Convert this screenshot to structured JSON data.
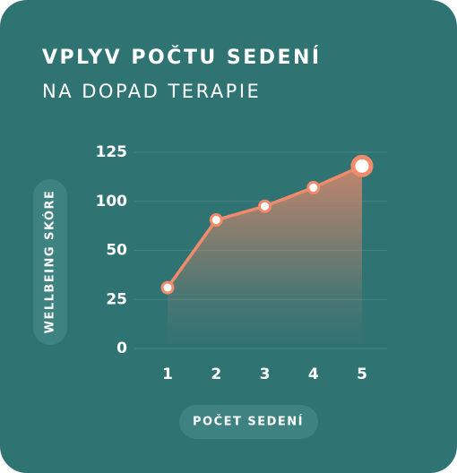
{
  "chart_data": {
    "type": "line",
    "title": "VPLYV POČTU SEDENÍ",
    "subtitle": "NA DOPAD TERAPIE",
    "x_label": "POČET SEDENÍ",
    "y_label": "WELLBEING SKÓRE",
    "categories": [
      "1",
      "2",
      "3",
      "4",
      "5"
    ],
    "values": [
      31,
      81,
      95,
      107,
      118
    ],
    "color": "#f28b6b",
    "ylim": [
      0,
      125
    ],
    "yticks": [
      0,
      25,
      50,
      100,
      125
    ],
    "grid": true
  }
}
